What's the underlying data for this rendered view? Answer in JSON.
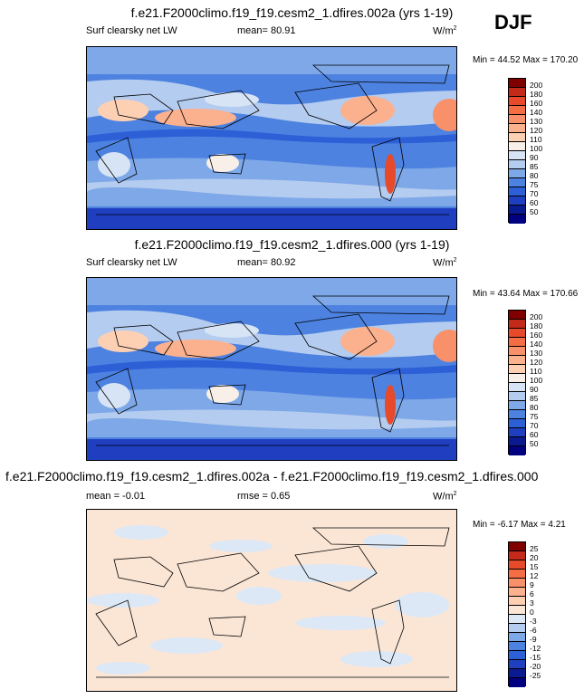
{
  "season": "DJF",
  "panels": [
    {
      "title": "f.e21.F2000climo.f19_f19.cesm2_1.dfires.002a (yrs 1-19)",
      "left_label": "Surf clearsky net LW",
      "mid_label": "mean=  80.91",
      "units": "W/m",
      "units_exp": "2",
      "minmax": "Min =  44.52 Max = 170.20",
      "cbar_labels": [
        "200",
        "180",
        "160",
        "140",
        "130",
        "120",
        "110",
        "100",
        "90",
        "85",
        "80",
        "75",
        "70",
        "60",
        "50"
      ],
      "cbar_colors": [
        "#800000",
        "#c42a1a",
        "#e64a2a",
        "#f46d45",
        "#f8916a",
        "#fbb08e",
        "#fdd0b4",
        "#f7efe8",
        "#d6e4f6",
        "#b4ccef",
        "#7ea8e8",
        "#4d82e0",
        "#2d5fd6",
        "#1f3fc0",
        "#0a1a90",
        "#000080"
      ],
      "mean": 80.91,
      "min": 44.52,
      "max": 170.2
    },
    {
      "title": "f.e21.F2000climo.f19_f19.cesm2_1.dfires.000 (yrs 1-19)",
      "left_label": "Surf clearsky net LW",
      "mid_label": "mean=  80.92",
      "units": "W/m",
      "units_exp": "2",
      "minmax": "Min =  43.64 Max = 170.66",
      "cbar_labels": [
        "200",
        "180",
        "160",
        "140",
        "130",
        "120",
        "110",
        "100",
        "90",
        "85",
        "80",
        "75",
        "70",
        "60",
        "50"
      ],
      "cbar_colors": [
        "#800000",
        "#c42a1a",
        "#e64a2a",
        "#f46d45",
        "#f8916a",
        "#fbb08e",
        "#fdd0b4",
        "#f7efe8",
        "#d6e4f6",
        "#b4ccef",
        "#7ea8e8",
        "#4d82e0",
        "#2d5fd6",
        "#1f3fc0",
        "#0a1a90",
        "#000080"
      ],
      "mean": 80.92,
      "min": 43.64,
      "max": 170.66
    },
    {
      "title": "f.e21.F2000climo.f19_f19.cesm2_1.dfires.002a - f.e21.F2000climo.f19_f19.cesm2_1.dfires.000",
      "left_label": "mean =  -0.01",
      "mid_label": "rmse =   0.65",
      "units": "W/m",
      "units_exp": "2",
      "minmax": "Min =  -6.17 Max =   4.21",
      "cbar_labels": [
        "25",
        "20",
        "15",
        "12",
        "9",
        "6",
        "3",
        "0",
        "-3",
        "-6",
        "-9",
        "-12",
        "-15",
        "-20",
        "-25"
      ],
      "cbar_colors": [
        "#800000",
        "#c42a1a",
        "#e64a2a",
        "#f46d45",
        "#f8916a",
        "#fbb08e",
        "#fdd0b4",
        "#fbe6d6",
        "#dde8f6",
        "#b4ccef",
        "#7ea8e8",
        "#4d82e0",
        "#2d5fd6",
        "#1f3fc0",
        "#0a1a90",
        "#000080"
      ],
      "mean": -0.01,
      "rmse": 0.65,
      "min": -6.17,
      "max": 4.21
    }
  ]
}
